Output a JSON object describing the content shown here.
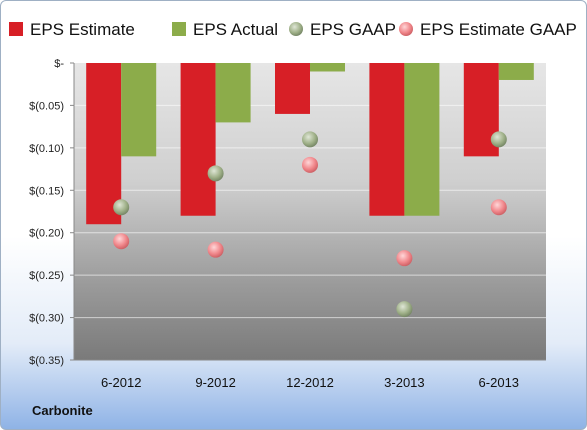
{
  "company": "Carbonite",
  "chart_data": {
    "type": "bar",
    "categories": [
      "6-2012",
      "9-2012",
      "12-2012",
      "3-2013",
      "6-2013"
    ],
    "series": [
      {
        "name": "EPS Estimate",
        "kind": "bar",
        "color": "#d71f26",
        "values": [
          -0.19,
          -0.18,
          -0.06,
          -0.18,
          -0.11
        ]
      },
      {
        "name": "EPS Actual",
        "kind": "bar",
        "color": "#8cac4a",
        "values": [
          -0.11,
          -0.07,
          -0.01,
          -0.18,
          -0.02
        ]
      },
      {
        "name": "EPS GAAP",
        "kind": "scatter",
        "color": "#9fb088",
        "values": [
          -0.17,
          -0.13,
          -0.09,
          -0.29,
          -0.09
        ]
      },
      {
        "name": "EPS Estimate GAAP",
        "kind": "scatter",
        "color": "#f0868a",
        "values": [
          -0.21,
          -0.22,
          -0.12,
          -0.23,
          -0.17
        ]
      }
    ],
    "ylim": [
      -0.35,
      0
    ],
    "yticks": [
      0,
      -0.05,
      -0.1,
      -0.15,
      -0.2,
      -0.25,
      -0.3,
      -0.35
    ],
    "ytick_labels": [
      "$-",
      "$(0.05)",
      "$(0.10)",
      "$(0.15)",
      "$(0.20)",
      "$(0.25)",
      "$(0.30)",
      "$(0.35)"
    ],
    "grid": true,
    "legend_position": "top"
  }
}
